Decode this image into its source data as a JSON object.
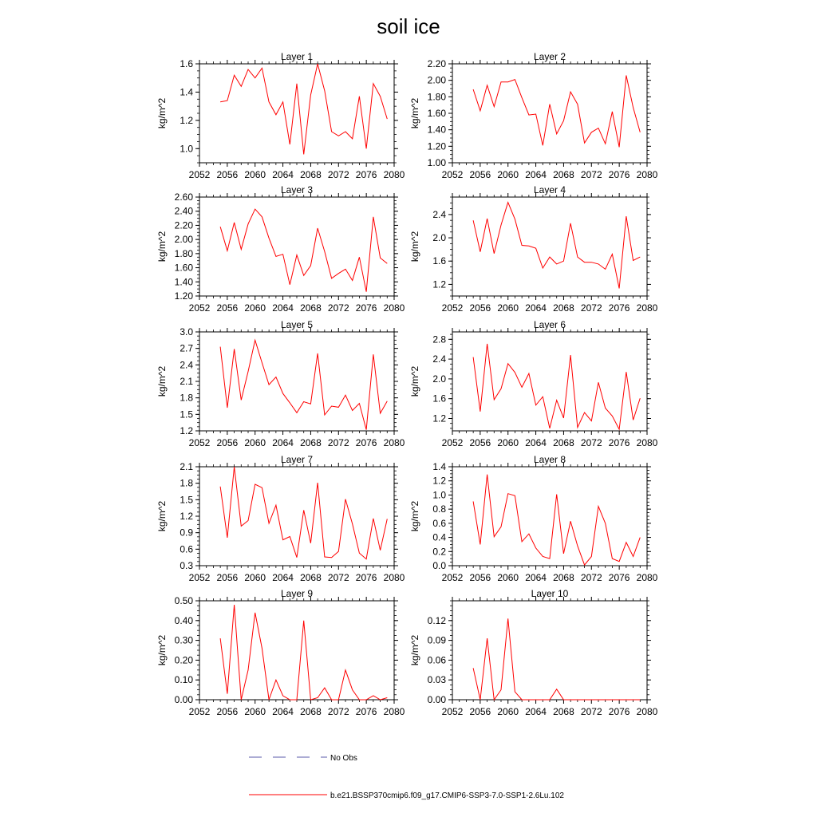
{
  "title": "soil ice",
  "legend": {
    "obs_label": "No Obs",
    "obs_color": "#5a5aa8",
    "model_label": "b.e21.BSSP370cmip6.f09_g17.CMIP6-SSP3-7.0-SSP1-2.6Lu.102",
    "model_color": "#ff0000"
  },
  "chart_data": [
    {
      "type": "line",
      "title": "Layer 1",
      "ylabel": "kg/m^2",
      "xlim": [
        2052,
        2080
      ],
      "xticks": [
        "2052",
        "2056",
        "2060",
        "2064",
        "2068",
        "2072",
        "2076",
        "2080"
      ],
      "ylim": [
        0.9,
        1.6
      ],
      "yticks": [
        "1.0",
        "1.2",
        "1.4",
        "1.6"
      ],
      "ytick_values": [
        1.0,
        1.2,
        1.4,
        1.6
      ],
      "x": [
        2055,
        2056,
        2057,
        2058,
        2059,
        2060,
        2061,
        2062,
        2063,
        2064,
        2065,
        2066,
        2067,
        2068,
        2069,
        2070,
        2071,
        2072,
        2073,
        2074,
        2075,
        2076,
        2077,
        2078,
        2079
      ],
      "series": [
        {
          "values": [
            1.33,
            1.34,
            1.52,
            1.44,
            1.56,
            1.5,
            1.57,
            1.33,
            1.24,
            1.33,
            1.03,
            1.46,
            0.96,
            1.38,
            1.6,
            1.41,
            1.12,
            1.09,
            1.12,
            1.07,
            1.37,
            1.0,
            1.46,
            1.37,
            1.21
          ]
        }
      ]
    },
    {
      "type": "line",
      "title": "Layer 2",
      "ylabel": "kg/m^2",
      "xlim": [
        2052,
        2080
      ],
      "xticks": [
        "2052",
        "2056",
        "2060",
        "2064",
        "2068",
        "2072",
        "2076",
        "2080"
      ],
      "ylim": [
        1.0,
        2.2
      ],
      "yticks": [
        "1.00",
        "1.20",
        "1.40",
        "1.60",
        "1.80",
        "2.00",
        "2.20"
      ],
      "ytick_values": [
        1.0,
        1.2,
        1.4,
        1.6,
        1.8,
        2.0,
        2.2
      ],
      "x": [
        2055,
        2056,
        2057,
        2058,
        2059,
        2060,
        2061,
        2062,
        2063,
        2064,
        2065,
        2066,
        2067,
        2068,
        2069,
        2070,
        2071,
        2072,
        2073,
        2074,
        2075,
        2076,
        2077,
        2078,
        2079
      ],
      "series": [
        {
          "values": [
            1.89,
            1.63,
            1.94,
            1.68,
            1.98,
            1.98,
            2.01,
            1.79,
            1.58,
            1.59,
            1.21,
            1.71,
            1.35,
            1.51,
            1.86,
            1.71,
            1.24,
            1.37,
            1.42,
            1.23,
            1.62,
            1.19,
            2.06,
            1.67,
            1.37
          ]
        }
      ]
    },
    {
      "type": "line",
      "title": "Layer 3",
      "ylabel": "kg/m^2",
      "xlim": [
        2052,
        2080
      ],
      "xticks": [
        "2052",
        "2056",
        "2060",
        "2064",
        "2068",
        "2072",
        "2076",
        "2080"
      ],
      "ylim": [
        1.2,
        2.6
      ],
      "yticks": [
        "1.20",
        "1.40",
        "1.60",
        "1.80",
        "2.00",
        "2.20",
        "2.40",
        "2.60"
      ],
      "ytick_values": [
        1.2,
        1.4,
        1.6,
        1.8,
        2.0,
        2.2,
        2.4,
        2.6
      ],
      "x": [
        2055,
        2056,
        2057,
        2058,
        2059,
        2060,
        2061,
        2062,
        2063,
        2064,
        2065,
        2066,
        2067,
        2068,
        2069,
        2070,
        2071,
        2072,
        2073,
        2074,
        2075,
        2076,
        2077,
        2078,
        2079
      ],
      "series": [
        {
          "values": [
            2.18,
            1.84,
            2.24,
            1.86,
            2.22,
            2.43,
            2.32,
            2.02,
            1.76,
            1.79,
            1.36,
            1.78,
            1.49,
            1.63,
            2.16,
            1.83,
            1.45,
            1.52,
            1.58,
            1.42,
            1.75,
            1.26,
            2.32,
            1.74,
            1.66
          ]
        }
      ]
    },
    {
      "type": "line",
      "title": "Layer 4",
      "ylabel": "kg/m^2",
      "xlim": [
        2052,
        2080
      ],
      "xticks": [
        "2052",
        "2056",
        "2060",
        "2064",
        "2068",
        "2072",
        "2076",
        "2080"
      ],
      "ylim": [
        1.0,
        2.7
      ],
      "yticks": [
        "1.2",
        "1.6",
        "2.0",
        "2.4"
      ],
      "ytick_values": [
        1.2,
        1.6,
        2.0,
        2.4
      ],
      "x": [
        2055,
        2056,
        2057,
        2058,
        2059,
        2060,
        2061,
        2062,
        2063,
        2064,
        2065,
        2066,
        2067,
        2068,
        2069,
        2070,
        2071,
        2072,
        2073,
        2074,
        2075,
        2076,
        2077,
        2078,
        2079
      ],
      "series": [
        {
          "values": [
            2.3,
            1.76,
            2.33,
            1.73,
            2.22,
            2.61,
            2.32,
            1.87,
            1.86,
            1.82,
            1.48,
            1.67,
            1.55,
            1.6,
            2.25,
            1.67,
            1.58,
            1.58,
            1.55,
            1.46,
            1.72,
            1.13,
            2.37,
            1.61,
            1.67
          ]
        }
      ]
    },
    {
      "type": "line",
      "title": "Layer 5",
      "ylabel": "kg/m^2",
      "xlim": [
        2052,
        2080
      ],
      "xticks": [
        "2052",
        "2056",
        "2060",
        "2064",
        "2068",
        "2072",
        "2076",
        "2080"
      ],
      "ylim": [
        1.2,
        3.0
      ],
      "yticks": [
        "1.2",
        "1.5",
        "1.8",
        "2.1",
        "2.4",
        "2.7",
        "3.0"
      ],
      "ytick_values": [
        1.2,
        1.5,
        1.8,
        2.1,
        2.4,
        2.7,
        3.0
      ],
      "x": [
        2055,
        2056,
        2057,
        2058,
        2059,
        2060,
        2061,
        2062,
        2063,
        2064,
        2065,
        2066,
        2067,
        2068,
        2069,
        2070,
        2071,
        2072,
        2073,
        2074,
        2075,
        2076,
        2077,
        2078,
        2079
      ],
      "series": [
        {
          "values": [
            2.73,
            1.62,
            2.69,
            1.76,
            2.28,
            2.85,
            2.44,
            2.04,
            2.18,
            1.88,
            1.71,
            1.53,
            1.73,
            1.69,
            2.61,
            1.49,
            1.65,
            1.63,
            1.85,
            1.57,
            1.7,
            1.22,
            2.59,
            1.52,
            1.74
          ]
        }
      ]
    },
    {
      "type": "line",
      "title": "Layer 6",
      "ylabel": "kg/m^2",
      "xlim": [
        2052,
        2080
      ],
      "xticks": [
        "2052",
        "2056",
        "2060",
        "2064",
        "2068",
        "2072",
        "2076",
        "2080"
      ],
      "ylim": [
        0.95,
        2.95
      ],
      "yticks": [
        "1.2",
        "1.6",
        "2.0",
        "2.4",
        "2.8"
      ],
      "ytick_values": [
        1.2,
        1.6,
        2.0,
        2.4,
        2.8
      ],
      "x": [
        2055,
        2056,
        2057,
        2058,
        2059,
        2060,
        2061,
        2062,
        2063,
        2064,
        2065,
        2066,
        2067,
        2068,
        2069,
        2070,
        2071,
        2072,
        2073,
        2074,
        2075,
        2076,
        2077,
        2078,
        2079
      ],
      "series": [
        {
          "values": [
            2.44,
            1.34,
            2.71,
            1.58,
            1.8,
            2.31,
            2.13,
            1.83,
            2.11,
            1.47,
            1.64,
            1.0,
            1.57,
            1.21,
            2.48,
            1.02,
            1.32,
            1.15,
            1.93,
            1.41,
            1.25,
            0.98,
            2.14,
            1.17,
            1.61
          ]
        }
      ]
    },
    {
      "type": "line",
      "title": "Layer 7",
      "ylabel": "kg/m^2",
      "xlim": [
        2052,
        2080
      ],
      "xticks": [
        "2052",
        "2056",
        "2060",
        "2064",
        "2068",
        "2072",
        "2076",
        "2080"
      ],
      "ylim": [
        0.3,
        2.1
      ],
      "yticks": [
        "0.3",
        "0.6",
        "0.9",
        "1.2",
        "1.5",
        "1.8",
        "2.1"
      ],
      "ytick_values": [
        0.3,
        0.6,
        0.9,
        1.2,
        1.5,
        1.8,
        2.1
      ],
      "x": [
        2055,
        2056,
        2057,
        2058,
        2059,
        2060,
        2061,
        2062,
        2063,
        2064,
        2065,
        2066,
        2067,
        2068,
        2069,
        2070,
        2071,
        2072,
        2073,
        2074,
        2075,
        2076,
        2077,
        2078,
        2079
      ],
      "series": [
        {
          "values": [
            1.74,
            0.81,
            2.1,
            1.02,
            1.12,
            1.78,
            1.72,
            1.07,
            1.4,
            0.77,
            0.83,
            0.45,
            1.31,
            0.71,
            1.81,
            0.46,
            0.45,
            0.56,
            1.51,
            1.06,
            0.53,
            0.42,
            1.16,
            0.58,
            1.15
          ]
        }
      ]
    },
    {
      "type": "line",
      "title": "Layer 8",
      "ylabel": "kg/m^2",
      "xlim": [
        2052,
        2080
      ],
      "xticks": [
        "2052",
        "2056",
        "2060",
        "2064",
        "2068",
        "2072",
        "2076",
        "2080"
      ],
      "ylim": [
        0.0,
        1.4
      ],
      "yticks": [
        "0.0",
        "0.2",
        "0.4",
        "0.6",
        "0.8",
        "1.0",
        "1.2",
        "1.4"
      ],
      "ytick_values": [
        0.0,
        0.2,
        0.4,
        0.6,
        0.8,
        1.0,
        1.2,
        1.4
      ],
      "x": [
        2055,
        2056,
        2057,
        2058,
        2059,
        2060,
        2061,
        2062,
        2063,
        2064,
        2065,
        2066,
        2067,
        2068,
        2069,
        2070,
        2071,
        2072,
        2073,
        2074,
        2075,
        2076,
        2077,
        2078,
        2079
      ],
      "series": [
        {
          "values": [
            0.91,
            0.3,
            1.29,
            0.41,
            0.55,
            1.02,
            0.99,
            0.34,
            0.45,
            0.25,
            0.13,
            0.1,
            1.01,
            0.17,
            0.63,
            0.28,
            0.01,
            0.13,
            0.84,
            0.6,
            0.1,
            0.06,
            0.33,
            0.13,
            0.4
          ]
        }
      ]
    },
    {
      "type": "line",
      "title": "Layer 9",
      "ylabel": "kg/m^2",
      "xlim": [
        2052,
        2080
      ],
      "xticks": [
        "2052",
        "2056",
        "2060",
        "2064",
        "2068",
        "2072",
        "2076",
        "2080"
      ],
      "ylim": [
        0.0,
        0.5
      ],
      "yticks": [
        "0.00",
        "0.10",
        "0.20",
        "0.30",
        "0.40",
        "0.50"
      ],
      "ytick_values": [
        0.0,
        0.1,
        0.2,
        0.3,
        0.4,
        0.5
      ],
      "x": [
        2055,
        2056,
        2057,
        2058,
        2059,
        2060,
        2061,
        2062,
        2063,
        2064,
        2065,
        2066,
        2067,
        2068,
        2069,
        2070,
        2071,
        2072,
        2073,
        2074,
        2075,
        2076,
        2077,
        2078,
        2079
      ],
      "series": [
        {
          "values": [
            0.31,
            0.03,
            0.48,
            0.0,
            0.15,
            0.44,
            0.26,
            0.0,
            0.1,
            0.02,
            0.0,
            0.0,
            0.4,
            0.0,
            0.01,
            0.06,
            0.0,
            0.0,
            0.15,
            0.05,
            0.0,
            0.0,
            0.02,
            0.0,
            0.01
          ]
        }
      ]
    },
    {
      "type": "line",
      "title": "Layer 10",
      "ylabel": "kg/m^2",
      "xlim": [
        2052,
        2080
      ],
      "xticks": [
        "2052",
        "2056",
        "2060",
        "2064",
        "2068",
        "2072",
        "2076",
        "2080"
      ],
      "ylim": [
        0.0,
        0.15
      ],
      "yticks": [
        "0.00",
        "0.03",
        "0.06",
        "0.09",
        "0.12"
      ],
      "ytick_values": [
        0.0,
        0.03,
        0.06,
        0.09,
        0.12
      ],
      "x": [
        2055,
        2056,
        2057,
        2058,
        2059,
        2060,
        2061,
        2062,
        2063,
        2064,
        2065,
        2066,
        2067,
        2068,
        2069,
        2070,
        2071,
        2072,
        2073,
        2074,
        2075,
        2076,
        2077,
        2078,
        2079
      ],
      "series": [
        {
          "values": [
            0.048,
            0.0,
            0.093,
            0.0,
            0.015,
            0.123,
            0.012,
            0.0,
            0.0,
            0.0,
            0.0,
            0.0,
            0.016,
            0.0,
            0.0,
            0.0,
            0.0,
            0.0,
            0.0,
            0.0,
            0.0,
            0.0,
            0.0,
            0.0,
            0.0
          ]
        }
      ]
    }
  ]
}
